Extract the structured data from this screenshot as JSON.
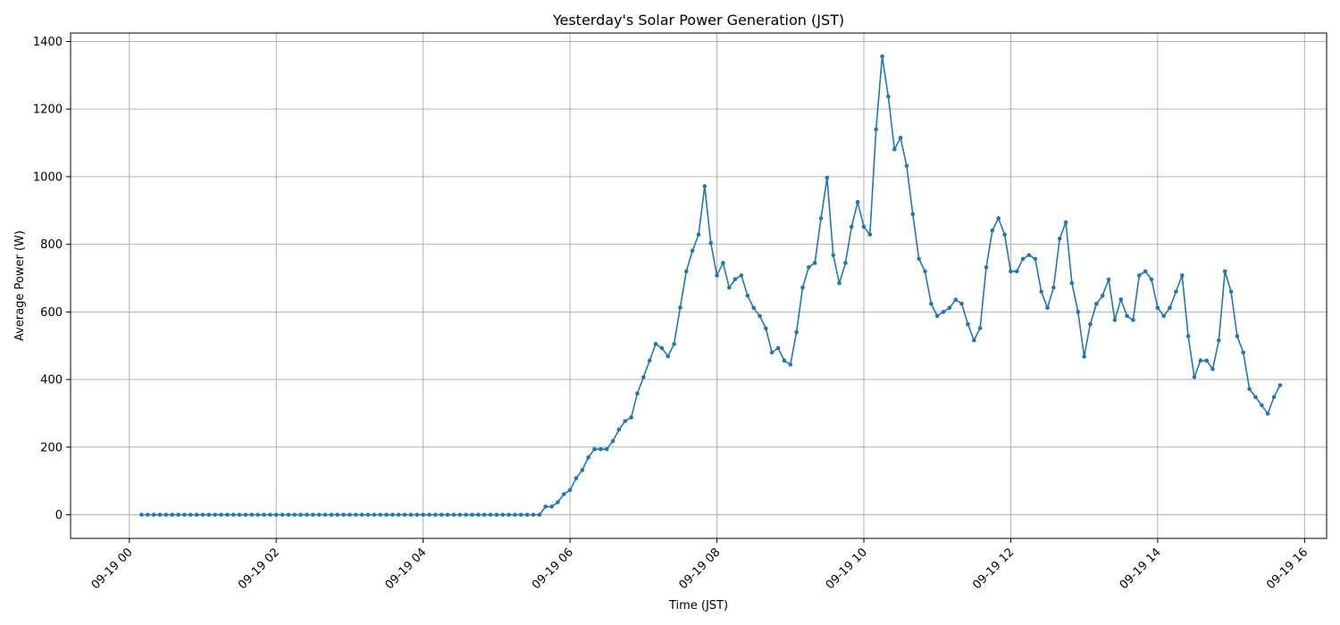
{
  "chart_data": {
    "type": "line",
    "title": "Yesterday's Solar Power Generation (JST)",
    "xlabel": "Time (JST)",
    "ylabel": "Average Power (W)",
    "grid": true,
    "color": "#1f77b4",
    "x_unit": "hours",
    "xlim": [
      -0.8,
      16.3
    ],
    "ylim": [
      -70,
      1425
    ],
    "x_ticks": [
      {
        "value": 0,
        "label": "09-19 00"
      },
      {
        "value": 2,
        "label": "09-19 02"
      },
      {
        "value": 4,
        "label": "09-19 04"
      },
      {
        "value": 6,
        "label": "09-19 06"
      },
      {
        "value": 8,
        "label": "09-19 08"
      },
      {
        "value": 10,
        "label": "09-19 10"
      },
      {
        "value": 12,
        "label": "09-19 12"
      },
      {
        "value": 14,
        "label": "09-19 14"
      },
      {
        "value": 16,
        "label": "09-19 16"
      }
    ],
    "y_ticks": [
      {
        "value": 0,
        "label": "0"
      },
      {
        "value": 200,
        "label": "200"
      },
      {
        "value": 400,
        "label": "400"
      },
      {
        "value": 600,
        "label": "600"
      },
      {
        "value": 800,
        "label": "800"
      },
      {
        "value": 1000,
        "label": "1000"
      },
      {
        "value": 1200,
        "label": "1200"
      },
      {
        "value": 1400,
        "label": "1400"
      }
    ],
    "x_start": 0.1667,
    "x_step": 0.08333,
    "values": [
      0,
      0,
      0,
      0,
      0,
      0,
      0,
      0,
      0,
      0,
      0,
      0,
      0,
      0,
      0,
      0,
      0,
      0,
      0,
      0,
      0,
      0,
      0,
      0,
      0,
      0,
      0,
      0,
      0,
      0,
      0,
      0,
      0,
      0,
      0,
      0,
      0,
      0,
      0,
      0,
      0,
      0,
      0,
      0,
      0,
      0,
      0,
      0,
      0,
      0,
      0,
      0,
      0,
      0,
      0,
      0,
      0,
      0,
      0,
      0,
      0,
      0,
      0,
      0,
      0,
      0,
      24,
      24,
      37,
      61,
      73,
      108,
      132,
      170,
      194,
      194,
      194,
      218,
      252,
      277,
      288,
      359,
      407,
      456,
      505,
      493,
      469,
      505,
      613,
      720,
      781,
      829,
      972,
      804,
      708,
      745,
      672,
      697,
      708,
      648,
      612,
      588,
      551,
      480,
      493,
      456,
      444,
      540,
      672,
      732,
      745,
      877,
      997,
      768,
      685,
      745,
      852,
      925,
      852,
      829,
      1140,
      1356,
      1237,
      1081,
      1115,
      1032,
      889,
      757,
      720,
      624,
      588,
      600,
      612,
      636,
      624,
      564,
      516,
      552,
      732,
      841,
      877,
      829,
      720,
      720,
      757,
      768,
      757,
      660,
      612,
      672,
      817,
      865,
      685,
      600,
      468,
      564,
      624,
      648,
      696,
      576,
      637,
      588,
      576,
      708,
      720,
      696,
      612,
      588,
      612,
      660,
      708,
      528,
      407,
      456,
      456,
      431,
      516,
      720,
      660,
      528,
      480,
      372,
      348,
      324,
      299,
      348,
      383
    ]
  }
}
